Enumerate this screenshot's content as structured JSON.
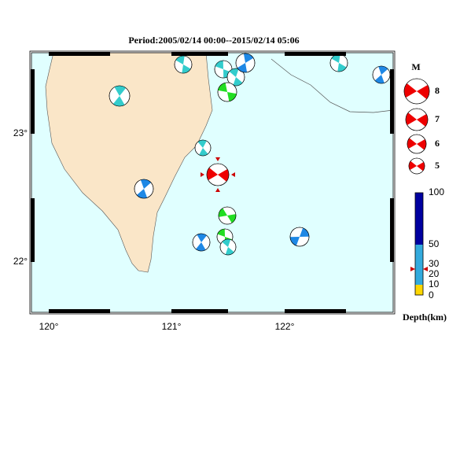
{
  "title": "Period:2005/02/14 00:00--2015/02/14 05:06",
  "x_axis": {
    "labels": [
      "120°",
      "121°",
      "122°"
    ]
  },
  "y_axis": {
    "labels": [
      "23°",
      "22°"
    ]
  },
  "magnitude_legend": {
    "title": "M",
    "labels": [
      "8",
      "7",
      "6",
      "5"
    ]
  },
  "depth_legend": {
    "labels": [
      "100",
      "50",
      "30",
      "20",
      "10",
      "0"
    ],
    "title": "Depth(km)"
  }
}
